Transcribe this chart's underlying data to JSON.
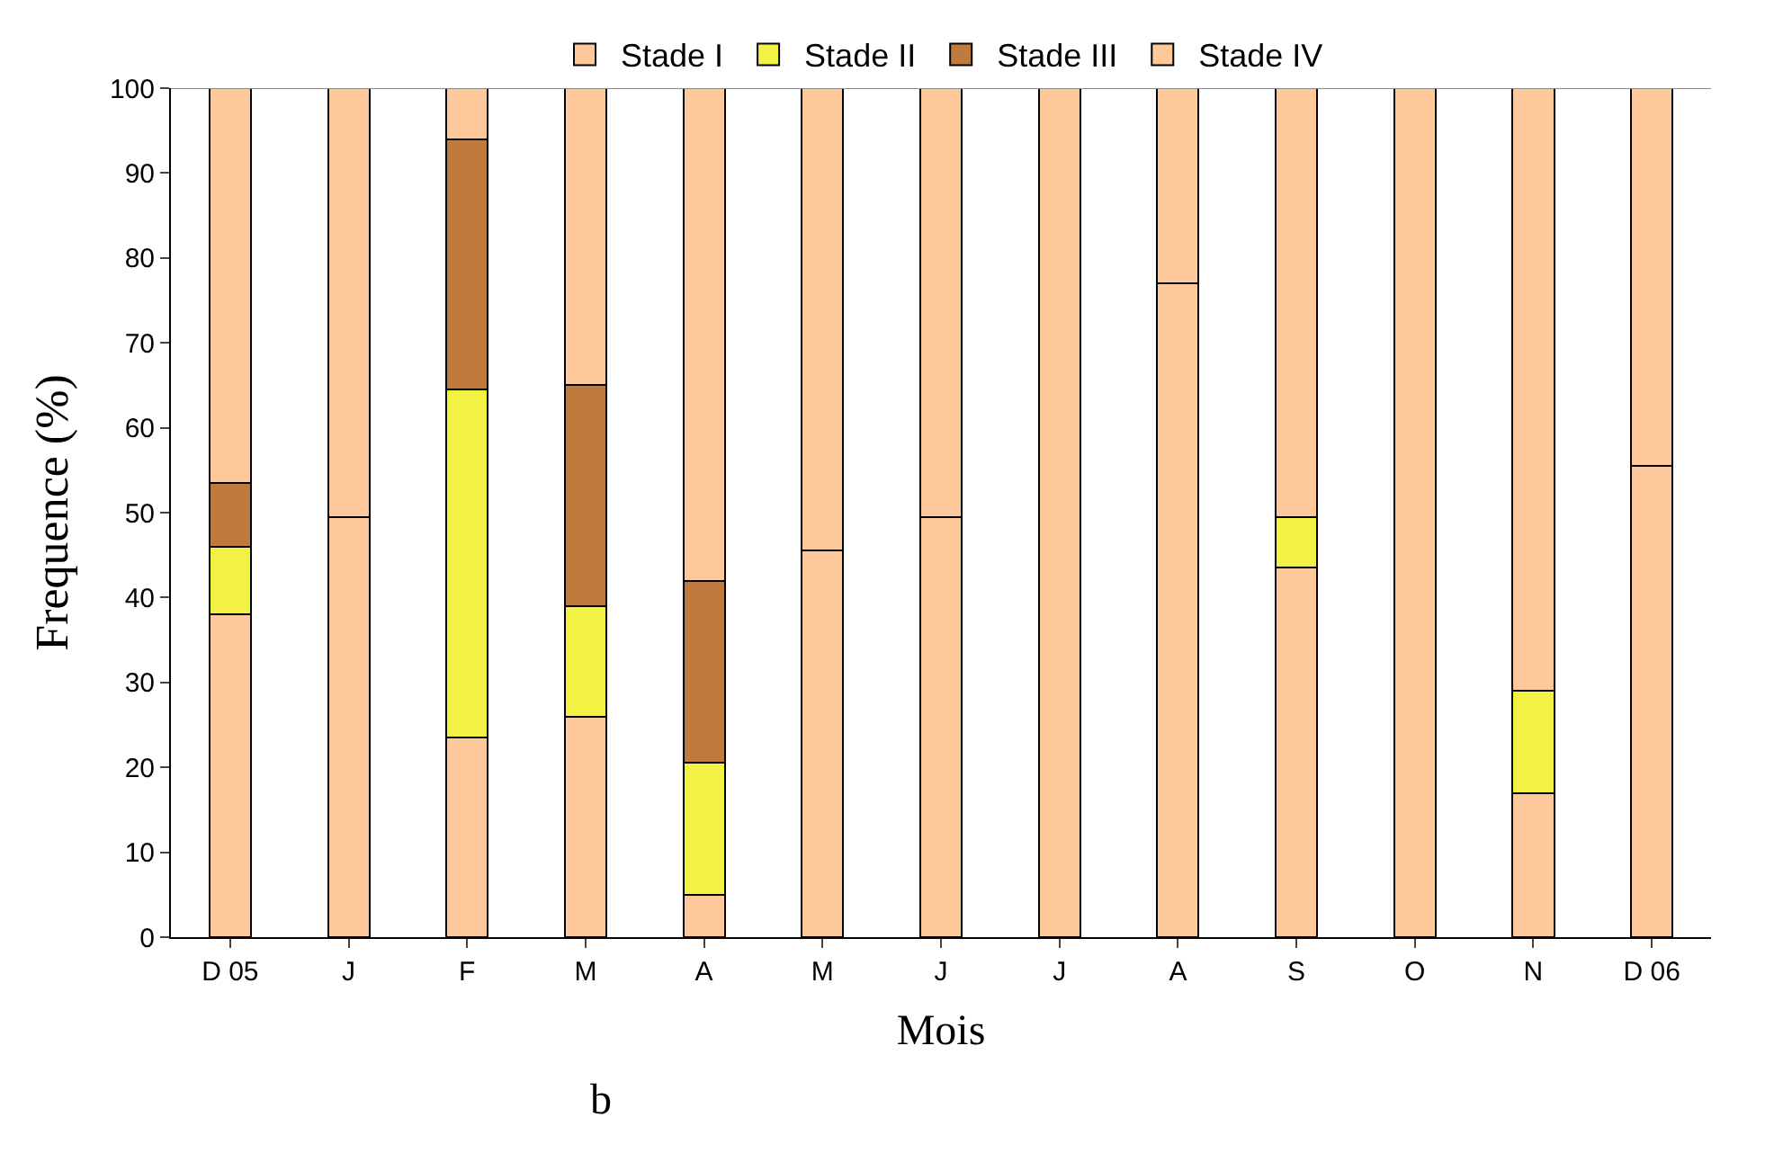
{
  "chart_data": {
    "type": "bar",
    "stacked": true,
    "xlabel": "Mois",
    "ylabel": "Frequence (%)",
    "categories": [
      "D 05",
      "J",
      "F",
      "M",
      "A",
      "M",
      "J",
      "J",
      "A",
      "S",
      "O",
      "N",
      "D 06"
    ],
    "series": [
      {
        "name": "Stade I",
        "color": "#fdc89a",
        "values": [
          38,
          49.5,
          23.5,
          26,
          5,
          45.5,
          49.5,
          null,
          77,
          43.5,
          null,
          17,
          55.5
        ]
      },
      {
        "name": "Stade II",
        "color": "#f2f244",
        "values": [
          8,
          null,
          41,
          13,
          15.5,
          null,
          null,
          null,
          null,
          6,
          null,
          12,
          null
        ]
      },
      {
        "name": "Stade III",
        "color": "#c07a3c",
        "values": [
          7.5,
          null,
          29.5,
          26,
          21.5,
          null,
          null,
          null,
          null,
          null,
          null,
          null,
          null
        ]
      },
      {
        "name": "Stade IV",
        "color": "#fdc89a",
        "values": [
          46.5,
          50.5,
          6,
          35,
          58,
          54.5,
          50.5,
          100,
          23,
          50.5,
          100,
          71,
          44.5
        ]
      }
    ],
    "ylim": [
      0,
      100
    ],
    "yticks": [
      0,
      10,
      20,
      30,
      40,
      50,
      60,
      70,
      80,
      90,
      100
    ],
    "legend": "top",
    "annotations": [
      "b"
    ]
  }
}
